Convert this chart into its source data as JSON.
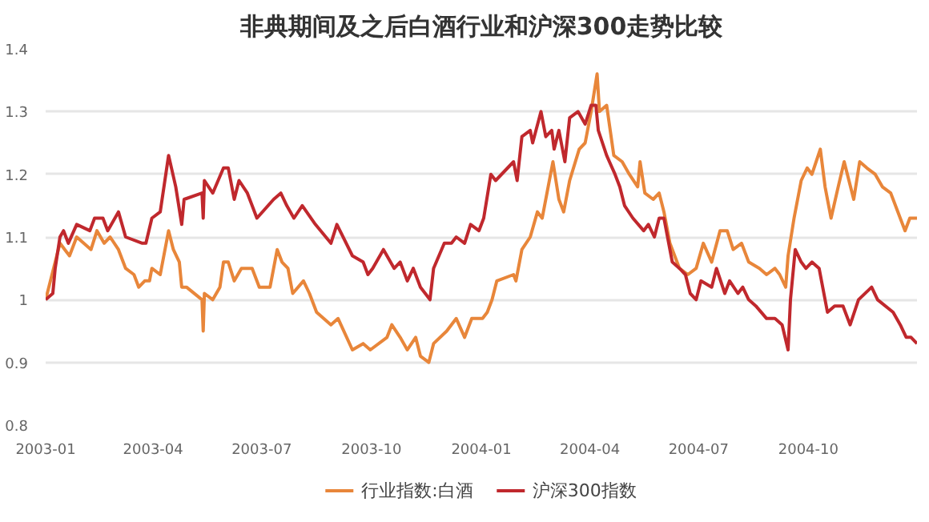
{
  "chart_data": {
    "type": "line",
    "title": "非典期间及之后白酒行业和沪深300走势比较",
    "xlim": [
      "2003-01-01",
      "2004-12-31"
    ],
    "xticks": [
      {
        "value": "2003-01-01",
        "label": "2003-01"
      },
      {
        "value": "2003-04-01",
        "label": "2003-04"
      },
      {
        "value": "2003-07-01",
        "label": "2003-07"
      },
      {
        "value": "2003-10-01",
        "label": "2003-10"
      },
      {
        "value": "2004-01-01",
        "label": "2004-01"
      },
      {
        "value": "2004-04-01",
        "label": "2004-04"
      },
      {
        "value": "2004-07-01",
        "label": "2004-07"
      },
      {
        "value": "2004-10-01",
        "label": "2004-10"
      }
    ],
    "ylim": [
      0.8,
      1.4
    ],
    "yticks": [
      0.8,
      0.9,
      1,
      1.1,
      1.2,
      1.3,
      1.4
    ],
    "grid": "y",
    "legend": "bottom",
    "marker": "none",
    "line_style": "solid",
    "series": [
      {
        "name": "行业指数:白酒",
        "color": "#e8863a",
        "x": [
          "2003-01-01",
          "2003-01-13",
          "2003-01-17",
          "2003-01-21",
          "2003-01-27",
          "2003-02-08",
          "2003-02-13",
          "2003-02-19",
          "2003-02-24",
          "2003-03-03",
          "2003-03-09",
          "2003-03-16",
          "2003-03-20",
          "2003-03-25",
          "2003-03-29",
          "2003-03-31",
          "2003-04-07",
          "2003-04-14",
          "2003-04-18",
          "2003-04-23",
          "2003-04-25",
          "2003-04-29",
          "2003-05-12",
          "2003-05-13",
          "2003-05-14",
          "2003-05-21",
          "2003-05-27",
          "2003-05-30",
          "2003-06-03",
          "2003-06-08",
          "2003-06-14",
          "2003-06-23",
          "2003-06-29",
          "2003-07-08",
          "2003-07-14",
          "2003-07-18",
          "2003-07-23",
          "2003-07-27",
          "2003-08-05",
          "2003-08-10",
          "2003-08-16",
          "2003-08-28",
          "2003-09-03",
          "2003-09-15",
          "2003-09-24",
          "2003-09-30",
          "2003-10-14",
          "2003-10-18",
          "2003-10-25",
          "2003-10-31",
          "2003-11-07",
          "2003-11-11",
          "2003-11-18",
          "2003-11-22",
          "2003-12-03",
          "2003-12-11",
          "2003-12-18",
          "2003-12-24",
          "2004-01-02",
          "2004-01-06",
          "2004-01-10",
          "2004-01-14",
          "2004-01-28",
          "2004-01-30",
          "2004-02-04",
          "2004-02-11",
          "2004-02-17",
          "2004-02-21",
          "2004-02-26",
          "2004-03-01",
          "2004-03-06",
          "2004-03-10",
          "2004-03-15",
          "2004-03-23",
          "2004-03-28",
          "2004-04-02",
          "2004-04-07",
          "2004-04-09",
          "2004-04-15",
          "2004-04-21",
          "2004-04-28",
          "2004-05-04",
          "2004-05-11",
          "2004-05-13",
          "2004-05-17",
          "2004-05-24",
          "2004-05-29",
          "2004-06-02",
          "2004-06-07",
          "2004-06-11",
          "2004-06-15",
          "2004-06-22",
          "2004-06-29",
          "2004-07-05",
          "2004-07-12",
          "2004-07-19",
          "2004-07-25",
          "2004-07-30",
          "2004-08-06",
          "2004-08-12",
          "2004-08-21",
          "2004-08-27",
          "2004-09-03",
          "2004-09-07",
          "2004-09-12",
          "2004-09-14",
          "2004-09-19",
          "2004-09-25",
          "2004-09-30",
          "2004-10-04",
          "2004-10-11",
          "2004-10-15",
          "2004-10-20",
          "2004-10-26",
          "2004-10-31",
          "2004-11-04",
          "2004-11-08",
          "2004-11-13",
          "2004-11-19",
          "2004-11-26",
          "2004-12-02",
          "2004-12-09",
          "2004-12-15",
          "2004-12-21",
          "2004-12-25",
          "2004-12-31"
        ],
        "values": [
          1.0,
          1.09,
          1.08,
          1.07,
          1.1,
          1.08,
          1.11,
          1.09,
          1.1,
          1.08,
          1.05,
          1.04,
          1.02,
          1.03,
          1.03,
          1.05,
          1.04,
          1.11,
          1.08,
          1.06,
          1.02,
          1.02,
          1.0,
          0.95,
          1.01,
          1.0,
          1.02,
          1.06,
          1.06,
          1.03,
          1.05,
          1.05,
          1.02,
          1.02,
          1.08,
          1.06,
          1.05,
          1.01,
          1.03,
          1.01,
          0.98,
          0.96,
          0.97,
          0.92,
          0.93,
          0.92,
          0.94,
          0.96,
          0.94,
          0.92,
          0.94,
          0.91,
          0.9,
          0.93,
          0.95,
          0.97,
          0.94,
          0.97,
          0.97,
          0.98,
          1.0,
          1.03,
          1.04,
          1.03,
          1.08,
          1.1,
          1.14,
          1.13,
          1.18,
          1.22,
          1.16,
          1.14,
          1.19,
          1.24,
          1.25,
          1.3,
          1.36,
          1.3,
          1.31,
          1.23,
          1.22,
          1.2,
          1.18,
          1.22,
          1.17,
          1.16,
          1.17,
          1.14,
          1.09,
          1.07,
          1.05,
          1.04,
          1.05,
          1.09,
          1.06,
          1.11,
          1.11,
          1.08,
          1.09,
          1.06,
          1.05,
          1.04,
          1.05,
          1.04,
          1.02,
          1.07,
          1.13,
          1.19,
          1.21,
          1.2,
          1.24,
          1.18,
          1.13,
          1.18,
          1.22,
          1.19,
          1.16,
          1.22,
          1.21,
          1.2,
          1.18,
          1.17,
          1.14,
          1.11,
          1.13,
          1.13
        ]
      },
      {
        "name": "沪深300指数",
        "color": "#c0282d",
        "x": [
          "2003-01-01",
          "2003-01-07",
          "2003-01-09",
          "2003-01-13",
          "2003-01-16",
          "2003-01-20",
          "2003-01-27",
          "2003-02-07",
          "2003-02-11",
          "2003-02-18",
          "2003-02-22",
          "2003-03-03",
          "2003-03-09",
          "2003-03-23",
          "2003-03-26",
          "2003-03-31",
          "2003-04-07",
          "2003-04-14",
          "2003-04-20",
          "2003-04-25",
          "2003-04-27",
          "2003-05-12",
          "2003-05-13",
          "2003-05-14",
          "2003-05-21",
          "2003-05-30",
          "2003-06-03",
          "2003-06-08",
          "2003-06-12",
          "2003-06-19",
          "2003-06-27",
          "2003-07-11",
          "2003-07-17",
          "2003-07-22",
          "2003-07-28",
          "2003-08-04",
          "2003-08-15",
          "2003-08-28",
          "2003-09-02",
          "2003-09-15",
          "2003-09-24",
          "2003-09-28",
          "2003-10-02",
          "2003-10-11",
          "2003-10-20",
          "2003-10-25",
          "2003-10-31",
          "2003-11-05",
          "2003-11-11",
          "2003-11-19",
          "2003-11-22",
          "2003-12-01",
          "2003-12-07",
          "2003-12-11",
          "2003-12-18",
          "2003-12-23",
          "2003-12-30",
          "2004-01-03",
          "2004-01-09",
          "2004-01-13",
          "2004-01-28",
          "2004-01-31",
          "2004-02-04",
          "2004-02-11",
          "2004-02-13",
          "2004-02-20",
          "2004-02-24",
          "2004-02-29",
          "2004-03-02",
          "2004-03-06",
          "2004-03-11",
          "2004-03-15",
          "2004-03-22",
          "2004-03-28",
          "2004-04-02",
          "2004-04-06",
          "2004-04-08",
          "2004-04-15",
          "2004-04-22",
          "2004-04-26",
          "2004-04-30",
          "2004-05-07",
          "2004-05-16",
          "2004-05-20",
          "2004-05-25",
          "2004-05-29",
          "2004-06-02",
          "2004-06-09",
          "2004-06-15",
          "2004-06-20",
          "2004-06-24",
          "2004-06-29",
          "2004-07-03",
          "2004-07-12",
          "2004-07-16",
          "2004-07-23",
          "2004-07-27",
          "2004-08-03",
          "2004-08-07",
          "2004-08-12",
          "2004-08-18",
          "2004-08-27",
          "2004-09-03",
          "2004-09-09",
          "2004-09-14",
          "2004-09-16",
          "2004-09-20",
          "2004-09-25",
          "2004-09-29",
          "2004-10-04",
          "2004-10-10",
          "2004-10-17",
          "2004-10-23",
          "2004-10-30",
          "2004-11-05",
          "2004-11-12",
          "2004-11-23",
          "2004-11-28",
          "2004-12-11",
          "2004-12-17",
          "2004-12-22",
          "2004-12-26",
          "2004-12-31"
        ],
        "values": [
          1.0,
          1.01,
          1.05,
          1.1,
          1.11,
          1.09,
          1.12,
          1.11,
          1.13,
          1.13,
          1.11,
          1.14,
          1.1,
          1.09,
          1.09,
          1.13,
          1.14,
          1.23,
          1.18,
          1.12,
          1.16,
          1.17,
          1.13,
          1.19,
          1.17,
          1.21,
          1.21,
          1.16,
          1.19,
          1.17,
          1.13,
          1.16,
          1.17,
          1.15,
          1.13,
          1.15,
          1.12,
          1.09,
          1.12,
          1.07,
          1.06,
          1.04,
          1.05,
          1.08,
          1.05,
          1.06,
          1.03,
          1.05,
          1.02,
          1.0,
          1.05,
          1.09,
          1.09,
          1.1,
          1.09,
          1.12,
          1.11,
          1.13,
          1.2,
          1.19,
          1.22,
          1.19,
          1.26,
          1.27,
          1.25,
          1.3,
          1.26,
          1.27,
          1.24,
          1.27,
          1.22,
          1.29,
          1.3,
          1.28,
          1.31,
          1.31,
          1.27,
          1.23,
          1.2,
          1.18,
          1.15,
          1.13,
          1.11,
          1.12,
          1.1,
          1.13,
          1.13,
          1.06,
          1.05,
          1.04,
          1.01,
          1.0,
          1.03,
          1.02,
          1.05,
          1.01,
          1.03,
          1.01,
          1.02,
          1.0,
          0.99,
          0.97,
          0.97,
          0.96,
          0.92,
          1.0,
          1.08,
          1.06,
          1.05,
          1.06,
          1.05,
          0.98,
          0.99,
          0.99,
          0.96,
          1.0,
          1.02,
          1.0,
          0.98,
          0.96,
          0.94,
          0.94,
          0.93
        ]
      }
    ]
  }
}
